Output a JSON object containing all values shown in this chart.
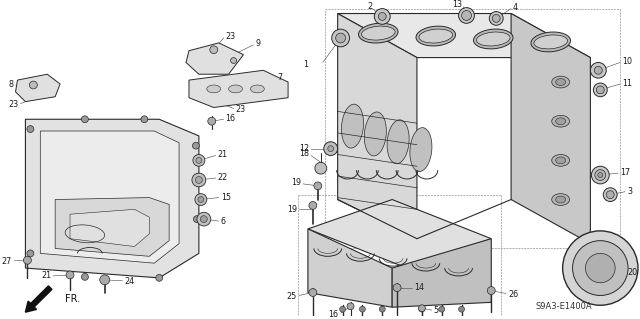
{
  "bg_color": "#ffffff",
  "line_color": "#2a2a2a",
  "text_color": "#1a1a1a",
  "diagram_code": "S9A3-E1400A",
  "arrow_label": "FR.",
  "label_fs": 5.8,
  "thin_lw": 0.5,
  "main_lw": 0.8
}
